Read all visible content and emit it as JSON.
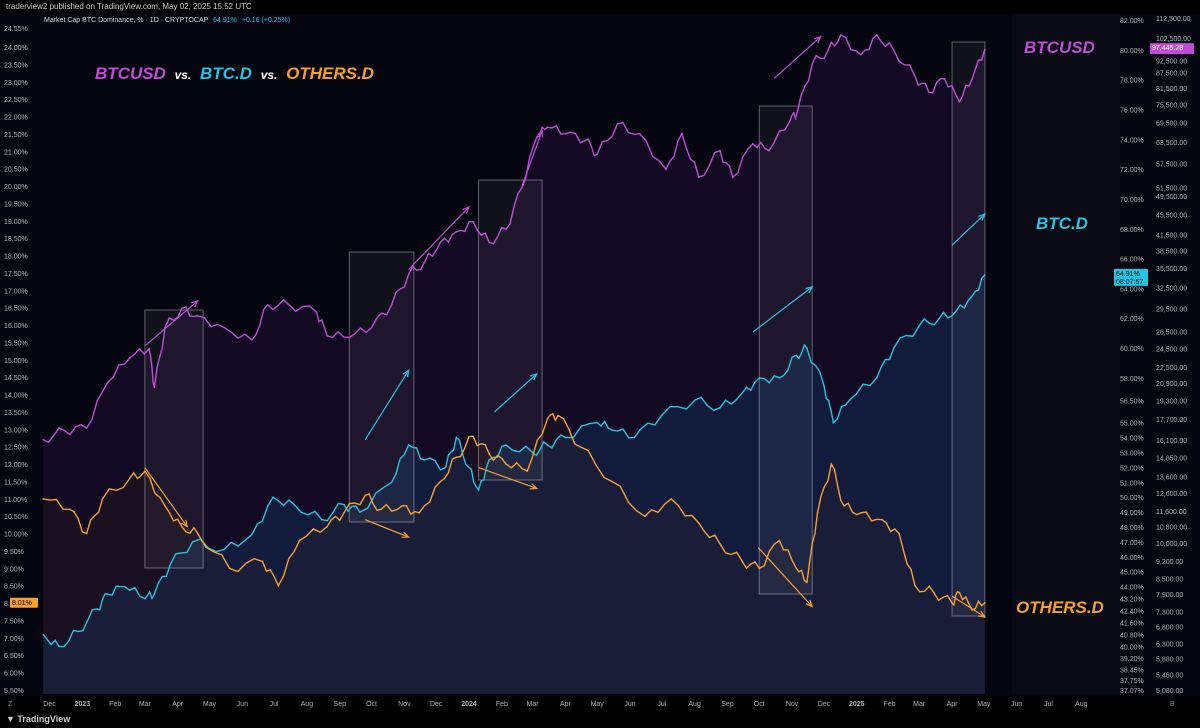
{
  "header": {
    "attribution": "traderview2 published on TradingView.com, May 02, 2025 15:52 UTC"
  },
  "legend": {
    "symbol": "Market Cap BTC Dominance, % · 1D · CRYPTOCAP",
    "value": "64.91%",
    "change": "+0.16 (+0.25%)"
  },
  "title": {
    "part1": "BTCUSD",
    "vs1": "vs.",
    "part2": "BTC.D",
    "vs2": "vs.",
    "part3": "OTHERS.D"
  },
  "labels": {
    "btcusd": "BTCUSD",
    "btcd": "BTC.D",
    "othersd": "OTHERS.D"
  },
  "footer": {
    "brand": "TradingView",
    "corner_left": "Z",
    "corner_right": "B"
  },
  "colors": {
    "btcusd": "#c24bd8",
    "btcd": "#22c4e4",
    "othersd": "#f5a030",
    "background": "#050510"
  },
  "badges": {
    "others_last": "8.01%",
    "btcd_last": "64.91%",
    "btcd_countdown": "08:07:57",
    "btcusd_last": "97,445.28"
  },
  "chart_data": {
    "type": "line",
    "title": "",
    "x_axis_labels": [
      "Dec",
      "2023",
      "Feb",
      "Mar",
      "Apr",
      "May",
      "Jun",
      "Jul",
      "Aug",
      "Sep",
      "Oct",
      "Nov",
      "Dec",
      "2024",
      "Feb",
      "Mar",
      "Apr",
      "May",
      "Jun",
      "Jul",
      "Aug",
      "Sep",
      "Oct",
      "Nov",
      "Dec",
      "2025",
      "Feb",
      "Mar",
      "Apr",
      "May",
      "Jun",
      "Jul",
      "Aug"
    ],
    "left_axis_labels": [
      "24.55%",
      "24.00%",
      "23.50%",
      "23.00%",
      "22.50%",
      "22.00%",
      "21.50%",
      "21.00%",
      "20.50%",
      "20.00%",
      "19.50%",
      "19.00%",
      "18.50%",
      "18.00%",
      "17.50%",
      "17.00%",
      "16.50%",
      "16.00%",
      "15.50%",
      "15.00%",
      "14.50%",
      "14.00%",
      "13.50%",
      "13.00%",
      "12.50%",
      "12.00%",
      "11.50%",
      "11.00%",
      "10.50%",
      "10.00%",
      "9.50%",
      "9.00%",
      "8.50%",
      "8.00%",
      "7.50%",
      "7.00%",
      "6.50%",
      "6.00%",
      "5.50%"
    ],
    "right_axis1_labels": [
      "82.00%",
      "80.00%",
      "78.00%",
      "76.00%",
      "74.00%",
      "72.00%",
      "70.00%",
      "68.00%",
      "66.00%",
      "64.00%",
      "62.00%",
      "60.00%",
      "58.00%",
      "56.50%",
      "55.00%",
      "54.00%",
      "53.00%",
      "52.00%",
      "51.00%",
      "50.00%",
      "49.00%",
      "48.00%",
      "47.00%",
      "46.00%",
      "45.00%",
      "44.00%",
      "43.20%",
      "42.40%",
      "41.60%",
      "40.80%",
      "40.00%",
      "39.20%",
      "38.45%",
      "37.75%",
      "37.07%"
    ],
    "right_axis2_labels": [
      "112,500.00",
      "102,500.00",
      "92,500.00",
      "87,500.00",
      "81,500.00",
      "75,500.00",
      "69,500.00",
      "63,500.00",
      "57,500.00",
      "51,500.00",
      "49,500.00",
      "45,500.00",
      "41,500.00",
      "38,500.00",
      "35,500.00",
      "32,500.00",
      "29,500.00",
      "26,500.00",
      "24,500.00",
      "22,500.00",
      "20,900.00",
      "19,300.00",
      "17,700.00",
      "16,100.00",
      "14,850.00",
      "13,600.00",
      "12,600.00",
      "11,600.00",
      "10,800.00",
      "10,000.00",
      "9,200.00",
      "8,500.00",
      "7,900.00",
      "7,300.00",
      "6,800.00",
      "6,300.00",
      "5,880.00",
      "5,460.00",
      "5,080.00"
    ],
    "series": [
      {
        "name": "BTCUSD",
        "axis": "right_price",
        "x": [
          "2022-11-25",
          "2022-12-15",
          "2023-01-05",
          "2023-01-25",
          "2023-02-15",
          "2023-03-05",
          "2023-03-10",
          "2023-03-20",
          "2023-04-05",
          "2023-04-20",
          "2023-05-15",
          "2023-06-10",
          "2023-06-25",
          "2023-07-15",
          "2023-08-10",
          "2023-08-20",
          "2023-09-10",
          "2023-10-01",
          "2023-10-20",
          "2023-11-05",
          "2023-11-20",
          "2023-12-05",
          "2023-12-20",
          "2024-01-05",
          "2024-01-20",
          "2024-02-05",
          "2024-02-20",
          "2024-03-05",
          "2024-03-15",
          "2024-04-01",
          "2024-04-20",
          "2024-05-01",
          "2024-05-20",
          "2024-06-10",
          "2024-07-05",
          "2024-07-20",
          "2024-08-05",
          "2024-08-25",
          "2024-09-06",
          "2024-09-25",
          "2024-10-10",
          "2024-10-30",
          "2024-11-06",
          "2024-11-20",
          "2024-12-05",
          "2024-12-17",
          "2025-01-05",
          "2025-01-20",
          "2025-02-05",
          "2025-02-25",
          "2025-03-10",
          "2025-03-25",
          "2025-04-08",
          "2025-04-20",
          "2025-05-02"
        ],
        "values": [
          16100,
          16800,
          17000,
          21000,
          23500,
          24500,
          20500,
          27000,
          29500,
          28500,
          27000,
          25500,
          30000,
          30000,
          29000,
          26000,
          25800,
          27000,
          30000,
          34500,
          36500,
          40000,
          42000,
          44000,
          40000,
          42500,
          51500,
          65000,
          68000,
          66000,
          64000,
          60000,
          69000,
          66000,
          56000,
          66000,
          54000,
          61000,
          54000,
          63000,
          61000,
          70000,
          73000,
          91000,
          97000,
          104000,
          95000,
          104000,
          97000,
          86000,
          80000,
          85000,
          76500,
          85000,
          97445
        ]
      },
      {
        "name": "BTC.D",
        "axis": "right_pct",
        "x": [
          "2022-11-25",
          "2022-12-10",
          "2022-12-28",
          "2023-01-15",
          "2023-01-25",
          "2023-02-10",
          "2023-03-01",
          "2023-03-10",
          "2023-03-25",
          "2023-04-15",
          "2023-05-15",
          "2023-06-10",
          "2023-06-30",
          "2023-07-20",
          "2023-08-15",
          "2023-09-05",
          "2023-09-20",
          "2023-10-20",
          "2023-11-05",
          "2023-11-20",
          "2023-12-10",
          "2023-12-20",
          "2024-01-01",
          "2024-01-10",
          "2024-01-20",
          "2024-02-05",
          "2024-03-01",
          "2024-03-15",
          "2024-04-01",
          "2024-05-01",
          "2024-05-15",
          "2024-06-05",
          "2024-07-01",
          "2024-08-01",
          "2024-08-25",
          "2024-09-15",
          "2024-10-01",
          "2024-10-20",
          "2024-11-05",
          "2024-11-15",
          "2024-12-01",
          "2024-12-10",
          "2024-12-25",
          "2025-01-20",
          "2025-02-05",
          "2025-03-01",
          "2025-03-20",
          "2025-04-05",
          "2025-04-20",
          "2025-05-02"
        ],
        "values": [
          40.8,
          40.0,
          41.0,
          42.5,
          43.5,
          44.0,
          43.2,
          43.5,
          45.5,
          47.0,
          46.5,
          47.5,
          50.0,
          49.5,
          48.5,
          49.5,
          49.0,
          51.0,
          53.5,
          52.5,
          52.0,
          54.0,
          52.0,
          50.5,
          52.5,
          53.5,
          53.0,
          53.5,
          54.0,
          55.0,
          54.5,
          54.0,
          55.5,
          56.5,
          56.0,
          57.0,
          58.0,
          58.0,
          59.5,
          60.0,
          57.5,
          55.0,
          56.5,
          58.0,
          60.0,
          61.5,
          62.0,
          62.5,
          63.5,
          64.91
        ]
      },
      {
        "name": "OTHERS.D",
        "axis": "left",
        "x": [
          "2022-11-25",
          "2022-12-20",
          "2023-01-05",
          "2023-01-20",
          "2023-02-15",
          "2023-03-01",
          "2023-03-20",
          "2023-04-05",
          "2023-04-20",
          "2023-05-20",
          "2023-06-20",
          "2023-07-05",
          "2023-07-25",
          "2023-08-20",
          "2023-09-05",
          "2023-09-25",
          "2023-10-10",
          "2023-10-30",
          "2023-11-15",
          "2023-12-05",
          "2023-12-20",
          "2024-01-05",
          "2024-01-20",
          "2024-02-05",
          "2024-02-25",
          "2024-03-15",
          "2024-03-25",
          "2024-04-15",
          "2024-05-15",
          "2024-06-15",
          "2024-07-10",
          "2024-08-05",
          "2024-08-25",
          "2024-09-15",
          "2024-10-01",
          "2024-10-20",
          "2024-11-05",
          "2024-11-15",
          "2024-11-25",
          "2024-12-08",
          "2024-12-20",
          "2025-01-05",
          "2025-01-25",
          "2025-02-10",
          "2025-02-25",
          "2025-03-15",
          "2025-04-01",
          "2025-04-08",
          "2025-04-20",
          "2025-05-02"
        ],
        "values": [
          11.0,
          10.7,
          10.0,
          11.0,
          11.6,
          11.8,
          10.8,
          10.2,
          10.0,
          9.0,
          9.2,
          8.5,
          9.8,
          10.2,
          10.6,
          11.1,
          10.7,
          10.8,
          10.6,
          11.5,
          12.2,
          12.8,
          12.3,
          12.0,
          11.8,
          13.3,
          13.4,
          12.5,
          11.5,
          10.5,
          11.0,
          10.3,
          9.7,
          9.2,
          9.0,
          9.8,
          9.0,
          8.6,
          10.6,
          12.0,
          10.8,
          10.6,
          10.4,
          10.0,
          8.5,
          8.3,
          8.0,
          8.3,
          7.8,
          8.01
        ]
      }
    ],
    "ylim_left": [
      5.5,
      24.55
    ],
    "ylim_right_pct": [
      37.07,
      82.0
    ],
    "ylim_right_price": [
      5080,
      112500
    ],
    "right_price_log_scale": true,
    "highlight_periods": [
      [
        "2023-03-01",
        "2023-04-25"
      ],
      [
        "2023-09-10",
        "2023-11-10"
      ],
      [
        "2024-01-10",
        "2024-03-10"
      ],
      [
        "2024-10-01",
        "2024-11-20"
      ],
      [
        "2025-04-01",
        "2025-05-02"
      ]
    ],
    "grid": false,
    "legend": "top-left"
  }
}
